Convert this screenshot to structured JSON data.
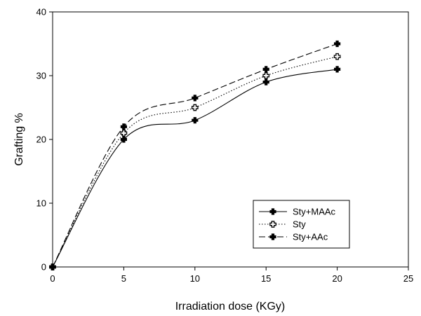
{
  "chart_data": {
    "type": "line",
    "title": "",
    "xlabel": "Irradiation dose (KGy)",
    "ylabel": "Grafting %",
    "xlim": [
      0,
      25
    ],
    "ylim": [
      0,
      40
    ],
    "xticks": [
      0,
      5,
      10,
      15,
      20,
      25
    ],
    "yticks": [
      0,
      10,
      20,
      30,
      40
    ],
    "xtick_labels": [
      "0",
      "5",
      "10",
      "15",
      "20",
      "25"
    ],
    "ytick_labels": [
      "0",
      "10",
      "20",
      "30",
      "40"
    ],
    "grid": false,
    "legend_position": "bottom-right",
    "x": [
      0,
      5,
      10,
      15,
      20
    ],
    "series": [
      {
        "name": "Sty+MAAc",
        "values": [
          0,
          20,
          23,
          29,
          31
        ],
        "line_style": "solid",
        "marker": "filled-cross"
      },
      {
        "name": "Sty",
        "values": [
          0,
          21,
          25,
          30,
          33
        ],
        "line_style": "dotted",
        "marker": "open-cross"
      },
      {
        "name": "Sty+AAc",
        "values": [
          0,
          22,
          26.5,
          31,
          35
        ],
        "line_style": "dashed",
        "marker": "filled-cross"
      }
    ],
    "colors": {
      "line": "#000000",
      "background": "#ffffff"
    }
  }
}
